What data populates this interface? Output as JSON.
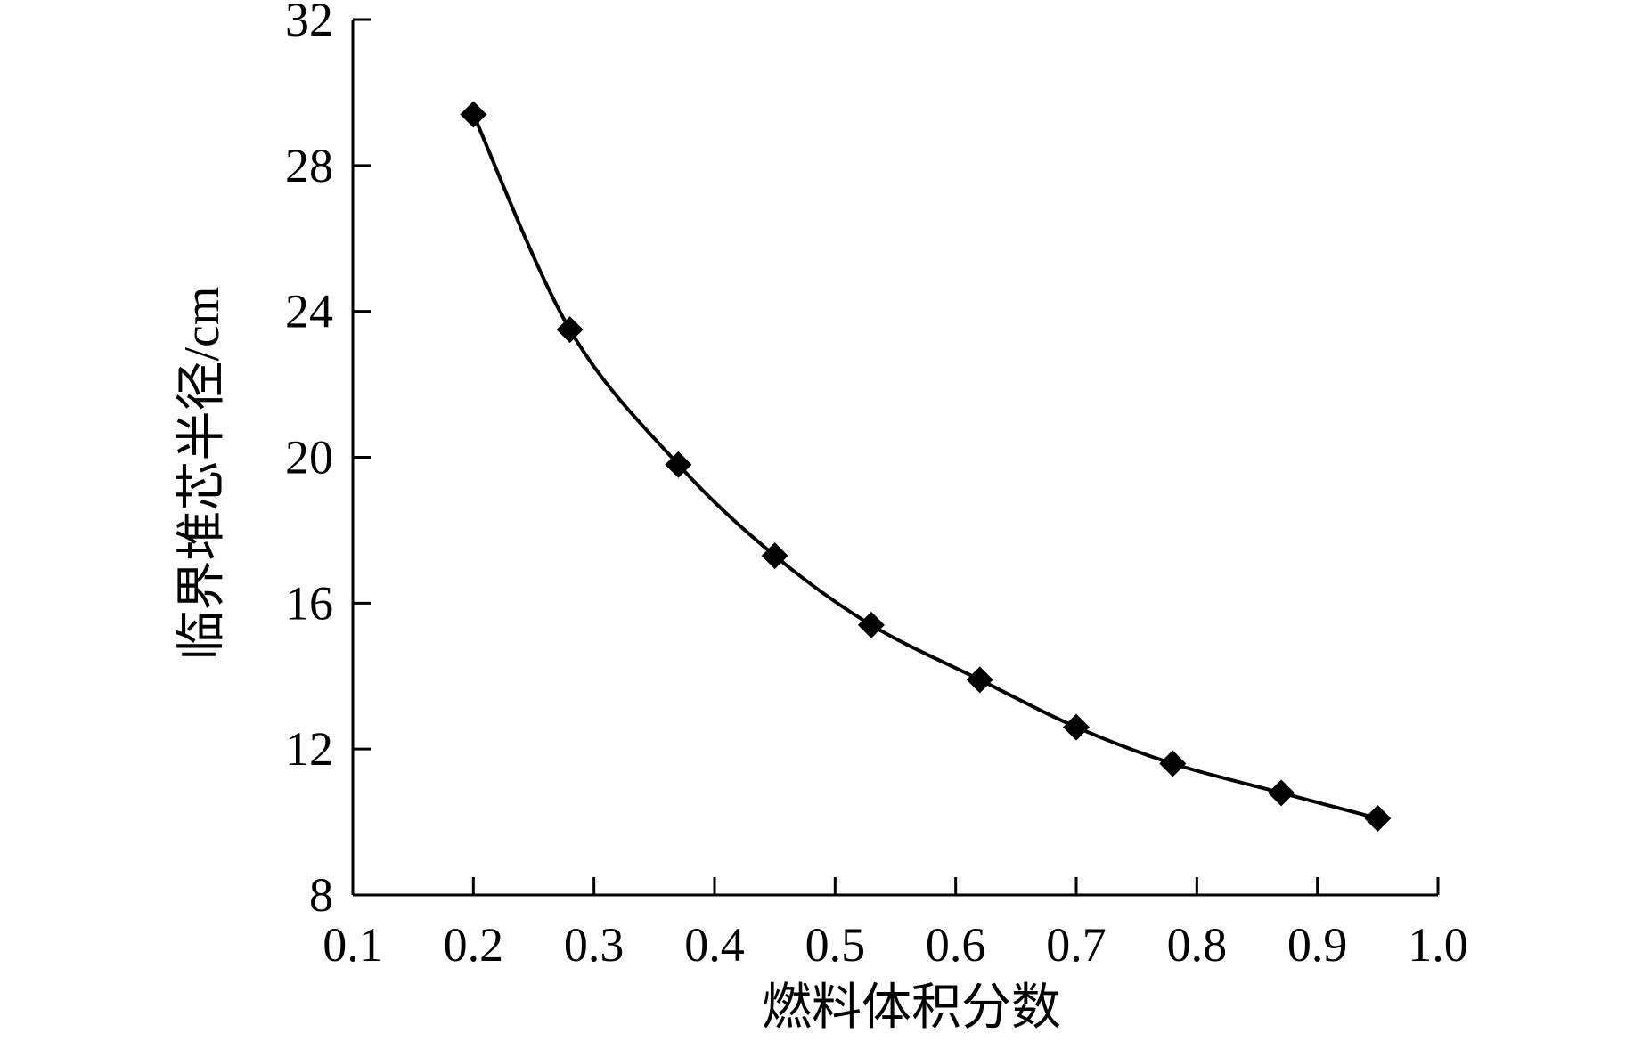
{
  "chart_data": {
    "type": "line",
    "title": "",
    "xlabel": "燃料体积分数",
    "ylabel": "临界堆芯半径/cm",
    "xlim": [
      0.1,
      1.0
    ],
    "ylim": [
      8,
      32
    ],
    "x_ticks": [
      "0.1",
      "0.2",
      "0.3",
      "0.4",
      "0.5",
      "0.6",
      "0.7",
      "0.8",
      "0.9",
      "1.0"
    ],
    "y_ticks": [
      "8",
      "12",
      "16",
      "20",
      "24",
      "28",
      "32"
    ],
    "grid": false,
    "legend": "none",
    "marker": "diamond",
    "line_color": "#000000",
    "series": [
      {
        "x": [
          0.2,
          0.28,
          0.37,
          0.45,
          0.53,
          0.62,
          0.7,
          0.78,
          0.87,
          0.95
        ],
        "y": [
          29.4,
          23.5,
          19.8,
          17.3,
          15.4,
          13.9,
          12.6,
          11.6,
          10.8,
          10.1
        ]
      }
    ]
  }
}
